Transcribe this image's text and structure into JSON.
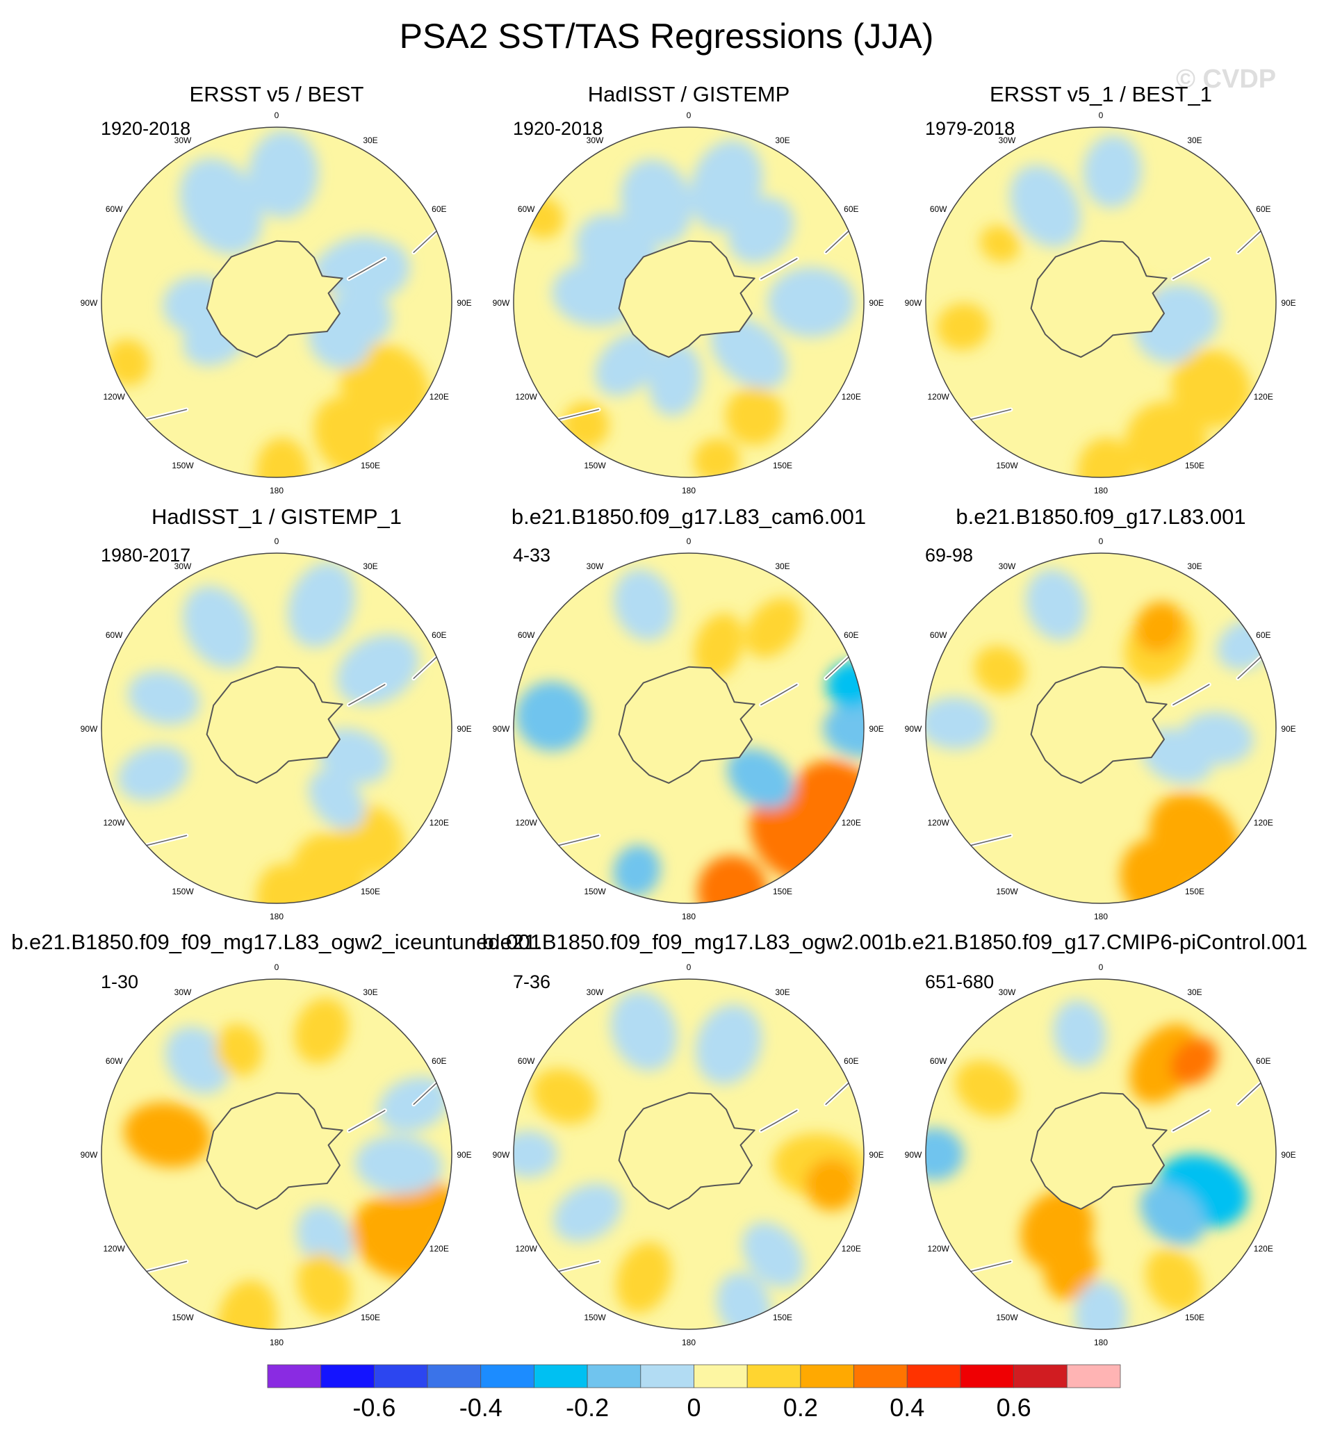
{
  "title": "PSA2 SST/TAS Regressions (JJA)",
  "watermark": "© CVDP",
  "lon_labels": [
    "0",
    "30E",
    "60E",
    "90E",
    "120E",
    "150E",
    "180",
    "150W",
    "120W",
    "90W",
    "60W",
    "30W"
  ],
  "palette": [
    "#8a2be2",
    "#1414ff",
    "#2c46f0",
    "#3a73e9",
    "#1c8cff",
    "#00c0f2",
    "#70c4ee",
    "#b2dcf3",
    "#fdf6a2",
    "#ffd530",
    "#ffa901",
    "#ff7500",
    "#ff3300",
    "#ef0003",
    "#d11c21",
    "#ffb4b4"
  ],
  "chart_data": {
    "type": "heatmap",
    "projection": "south-polar-stereographic",
    "panels": [
      {
        "title": "ERSST v5 / BEST",
        "period": "1920-2018",
        "blobs": [
          [
            -152,
            52,
            2.8,
            11,
            1
          ],
          [
            -178,
            58,
            2.3,
            9,
            1
          ],
          [
            -128,
            47,
            3.2,
            14,
            1
          ],
          [
            30,
            38,
            3.5,
            13,
            -1
          ],
          [
            -3,
            44,
            3,
            12,
            -1
          ],
          [
            -120,
            25,
            2.2,
            10,
            -1
          ],
          [
            -100,
            29,
            2.2,
            10,
            -1
          ],
          [
            -72,
            36,
            2.3,
            10,
            -1
          ],
          [
            -62,
            28,
            2.8,
            8,
            -1
          ],
          [
            120,
            24,
            2.4,
            9,
            -1
          ],
          [
            92,
            27,
            2.4,
            10,
            -1
          ],
          [
            -75,
            13,
            1,
            5,
            1
          ],
          [
            112,
            55,
            1.5,
            8,
            1
          ]
        ]
      },
      {
        "title": "HadISST / GISTEMP",
        "period": "1920-2018",
        "blobs": [
          [
            -18,
            42,
            3.2,
            12,
            -1
          ],
          [
            18,
            36,
            3,
            12,
            -1
          ],
          [
            55,
            30,
            3,
            12,
            -1
          ],
          [
            85,
            32,
            3,
            11,
            -1
          ],
          [
            -90,
            42,
            3,
            12,
            -1
          ],
          [
            -130,
            27,
            3,
            10,
            -1
          ],
          [
            170,
            27,
            2.5,
            9,
            -1
          ],
          [
            135,
            30,
            2.5,
            9,
            -1
          ],
          [
            -45,
            35,
            2.5,
            10,
            -1
          ],
          [
            -150,
            45,
            2,
            10,
            1
          ],
          [
            -170,
            55,
            1.5,
            8,
            1
          ],
          [
            140,
            55,
            1.6,
            8,
            1
          ],
          [
            60,
            58,
            1.5,
            7,
            1
          ]
        ]
      },
      {
        "title": "ERSST v5_1 / BEST_1",
        "period": "1979-2018",
        "blobs": [
          [
            -155,
            53,
            2.8,
            14,
            1
          ],
          [
            -178,
            58,
            2.3,
            10,
            1
          ],
          [
            -128,
            48,
            2.8,
            13,
            1
          ],
          [
            -115,
            25,
            2.3,
            10,
            -1
          ],
          [
            -100,
            28,
            2.6,
            11,
            -1
          ],
          [
            30,
            38,
            3,
            11,
            -1
          ],
          [
            -5,
            45,
            2.5,
            10,
            -1
          ],
          [
            100,
            48,
            1.8,
            8,
            1
          ],
          [
            60,
            40,
            1.4,
            6,
            1
          ],
          [
            -75,
            13,
            1,
            5,
            1
          ]
        ]
      },
      {
        "title": "HadISST_1 / GISTEMP_1",
        "period": "1980-2017",
        "blobs": [
          [
            -160,
            53,
            2.8,
            13,
            1
          ],
          [
            -140,
            50,
            2.5,
            11,
            1
          ],
          [
            -178,
            58,
            2.3,
            9,
            1
          ],
          [
            -60,
            40,
            3,
            11,
            -1
          ],
          [
            -20,
            45,
            3,
            11,
            -1
          ],
          [
            30,
            40,
            3,
            11,
            -1
          ],
          [
            -110,
            28,
            2.5,
            9,
            -1
          ],
          [
            -140,
            32,
            2.3,
            8,
            -1
          ],
          [
            75,
            40,
            2.5,
            9,
            -1
          ],
          [
            110,
            45,
            2.5,
            9,
            -1
          ]
        ]
      },
      {
        "title": "b.e21.B1850.f09_g17.L83_cam6.001",
        "period": "4-33",
        "blobs": [
          [
            -135,
            52,
            3.5,
            14,
            3
          ],
          [
            -115,
            56,
            3,
            12,
            3
          ],
          [
            -165,
            58,
            2.5,
            12,
            3
          ],
          [
            -90,
            60,
            2.8,
            10,
            -2
          ],
          [
            -75,
            58,
            1.8,
            8,
            -3
          ],
          [
            -125,
            30,
            2.5,
            9,
            -2
          ],
          [
            -20,
            30,
            2.3,
            8,
            1
          ],
          [
            -40,
            45,
            2.3,
            8,
            1
          ],
          [
            85,
            47,
            2.5,
            12,
            -2
          ],
          [
            160,
            52,
            1.8,
            8,
            -2
          ],
          [
            20,
            45,
            2.5,
            10,
            -1
          ]
        ]
      },
      {
        "title": "b.e21.B1850.f09_g17.L83.001",
        "period": "69-98",
        "blobs": [
          [
            -140,
            50,
            3.5,
            14,
            2
          ],
          [
            -160,
            55,
            2.8,
            12,
            2
          ],
          [
            -35,
            35,
            2.8,
            11,
            1
          ],
          [
            -30,
            40,
            1.8,
            8,
            2
          ],
          [
            -110,
            28,
            2.5,
            9,
            -1
          ],
          [
            -95,
            40,
            2.5,
            9,
            -1
          ],
          [
            88,
            50,
            2.5,
            9,
            -1
          ],
          [
            60,
            40,
            1.8,
            8,
            1
          ],
          [
            -60,
            57,
            2,
            8,
            -1
          ],
          [
            20,
            45,
            2.5,
            10,
            -1
          ]
        ]
      },
      {
        "title": "b.e21.B1850.f09_f09_mg17.L83_ogw2_iceuntuned.001",
        "period": "1-30",
        "blobs": [
          [
            -125,
            50,
            3.2,
            13,
            2
          ],
          [
            -110,
            55,
            2.5,
            10,
            2
          ],
          [
            170,
            58,
            2.8,
            10,
            1
          ],
          [
            80,
            38,
            3,
            11,
            2
          ],
          [
            -95,
            42,
            3,
            10,
            -1
          ],
          [
            -70,
            50,
            2.5,
            9,
            -1
          ],
          [
            -150,
            33,
            2.3,
            9,
            -1
          ],
          [
            40,
            42,
            2.5,
            10,
            -1
          ],
          [
            -160,
            48,
            2.3,
            9,
            1
          ],
          [
            -20,
            45,
            2.3,
            9,
            1
          ],
          [
            20,
            38,
            1.8,
            8,
            1
          ]
        ]
      },
      {
        "title": "b.e21.B1850.f09_f09_mg17.L83_ogw2.001",
        "period": "7-36",
        "blobs": [
          [
            -95,
            45,
            3.2,
            11,
            1
          ],
          [
            -102,
            50,
            1.8,
            9,
            2
          ],
          [
            160,
            45,
            2.5,
            9,
            1
          ],
          [
            65,
            47,
            2.3,
            9,
            1
          ],
          [
            -20,
            40,
            2.8,
            11,
            -1
          ],
          [
            20,
            45,
            2.8,
            11,
            -1
          ],
          [
            120,
            40,
            2.5,
            9,
            -1
          ],
          [
            -140,
            45,
            2.5,
            9,
            -1
          ],
          [
            -160,
            55,
            2.3,
            9,
            -1
          ],
          [
            90,
            55,
            2,
            8,
            -1
          ]
        ]
      },
      {
        "title": "b.e21.B1850.f09_g17.CMIP6-piControl.001",
        "period": "651-680",
        "blobs": [
          [
            -110,
            37,
            3.2,
            12,
            -3
          ],
          [
            -130,
            32,
            2.5,
            9,
            -2
          ],
          [
            90,
            57,
            2,
            9,
            -2
          ],
          [
            150,
            30,
            2.8,
            12,
            2
          ],
          [
            165,
            40,
            2.3,
            9,
            2
          ],
          [
            -35,
            38,
            3,
            10,
            2
          ],
          [
            -45,
            45,
            1.8,
            7,
            3
          ],
          [
            60,
            45,
            2.3,
            9,
            1
          ],
          [
            -150,
            50,
            2.3,
            9,
            1
          ],
          [
            -180,
            55,
            2.3,
            9,
            -1
          ],
          [
            10,
            42,
            2.3,
            9,
            -1
          ]
        ]
      }
    ],
    "colorbar": {
      "min": -0.8,
      "max": 0.8,
      "step": 0.1,
      "tick_values": [
        -0.6,
        -0.4,
        -0.2,
        0,
        0.2,
        0.4,
        0.6
      ],
      "tick_labels": [
        "-0.6",
        "-0.4",
        "-0.2",
        "0",
        "0.2",
        "0.4",
        "0.6"
      ]
    }
  }
}
